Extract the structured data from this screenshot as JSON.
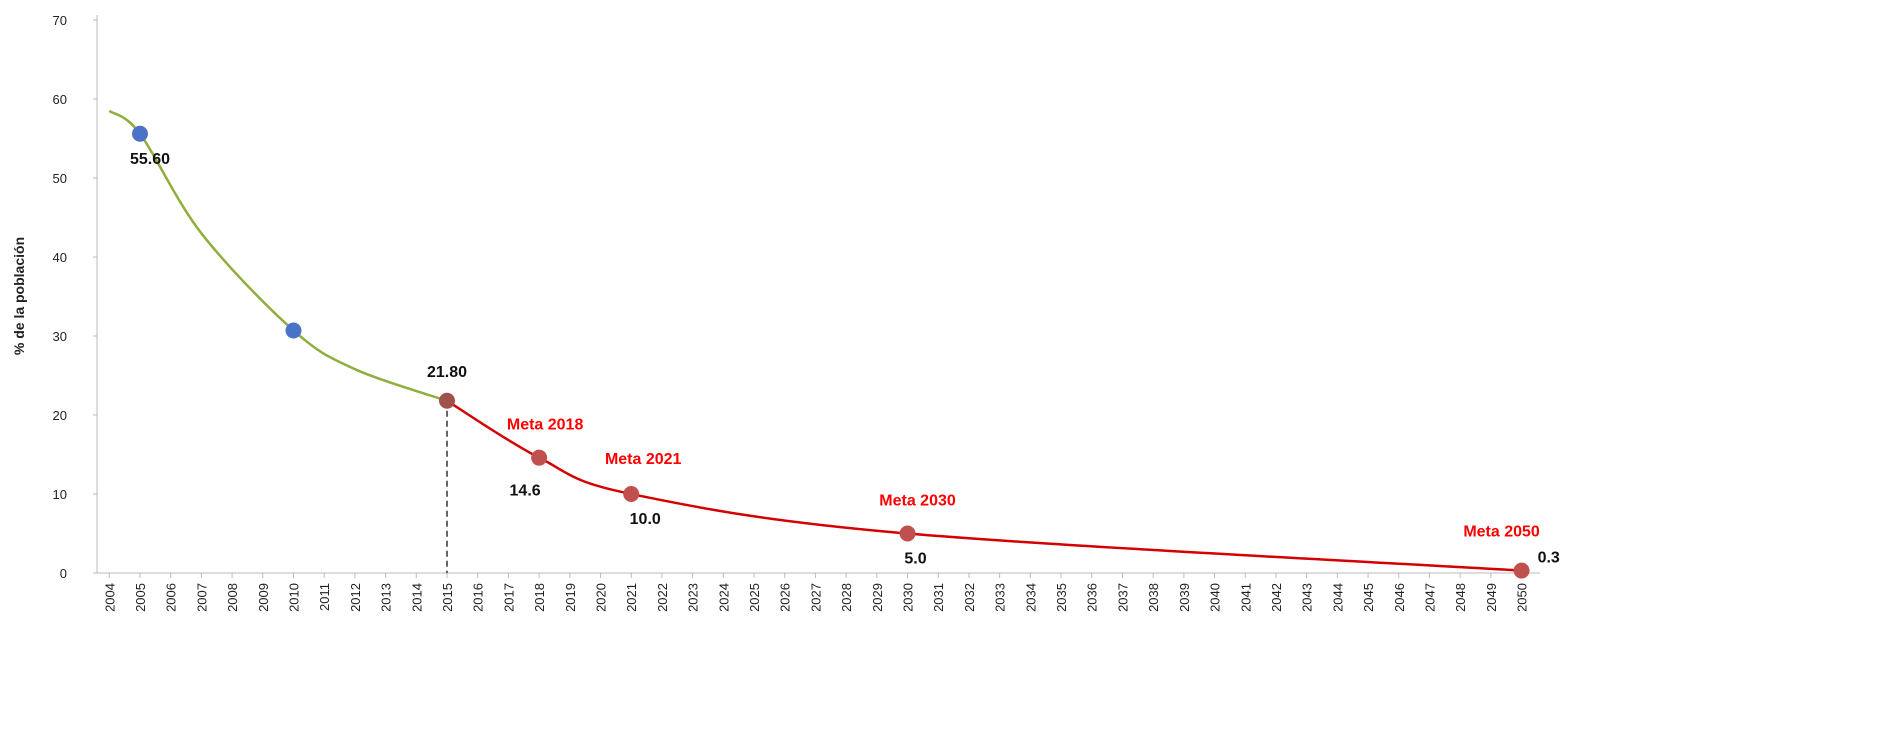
{
  "chart_data": {
    "type": "line",
    "y_label": "% de la población",
    "xlim": [
      2003.6,
      2050.6
    ],
    "xticks": [
      2004,
      2005,
      2006,
      2007,
      2008,
      2009,
      2010,
      2011,
      2012,
      2013,
      2014,
      2015,
      2016,
      2017,
      2018,
      2019,
      2020,
      2021,
      2022,
      2023,
      2024,
      2025,
      2026,
      2027,
      2028,
      2029,
      2030,
      2031,
      2032,
      2033,
      2034,
      2035,
      2036,
      2037,
      2038,
      2039,
      2040,
      2041,
      2042,
      2043,
      2044,
      2045,
      2046,
      2047,
      2048,
      2049,
      2050
    ],
    "ylim": [
      0,
      70
    ],
    "yticks": [
      0,
      10,
      20,
      30,
      40,
      50,
      60,
      70
    ],
    "vline_x": 2015,
    "series": [
      {
        "color": "#8fae3c",
        "x": [
          2004,
          2005,
          2007,
          2010,
          2012,
          2015
        ],
        "values": [
          58.5,
          55.6,
          43,
          30.7,
          25.8,
          21.8
        ],
        "point_colors": [
          null,
          "#4a72c8",
          null,
          "#4a72c8",
          null,
          "#a0504d"
        ],
        "value_labels": [
          null,
          "55.60",
          null,
          null,
          null,
          "21.80"
        ]
      },
      {
        "color": "#d40000",
        "x": [
          2015,
          2018,
          2021,
          2030,
          2050
        ],
        "values": [
          21.8,
          14.6,
          10.0,
          5.0,
          0.3
        ],
        "point_colors": [
          null,
          "#c0504d",
          "#c0504d",
          "#c0504d",
          "#c0504d"
        ],
        "value_labels": [
          null,
          "14.6",
          "10.0",
          "5.0",
          "0.3"
        ],
        "annotations": [
          null,
          "Meta 2018",
          "Meta 2021",
          "Meta 2030",
          "Meta 2050"
        ]
      }
    ]
  }
}
